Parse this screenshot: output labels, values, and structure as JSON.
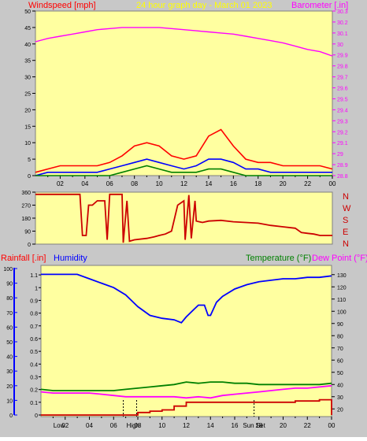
{
  "header": {
    "left_label": "Windspeed [mph]",
    "center_label": "24 hour graph day - March 01 2023",
    "right_label": "Barometer [.in]"
  },
  "colors": {
    "plot_bg": "#ffffa0",
    "frame_bg": "#c8c8c8",
    "red": "#ff0000",
    "magenta": "#ff00ff",
    "blue": "#0000ff",
    "green": "#008000",
    "dark_red": "#cc0000",
    "title_yellow": "#ffff00",
    "axis": "#000000"
  },
  "chart_data": [
    {
      "type": "line",
      "name": "wind-barometer",
      "left_axis": {
        "label": "Windspeed [mph]",
        "ylim": [
          0,
          50
        ],
        "ticks": [
          "0",
          "5",
          "10",
          "15",
          "20",
          "25",
          "30",
          "35",
          "40",
          "45",
          "50"
        ]
      },
      "right_axis": {
        "label": "Barometer [.in]",
        "ylim": [
          28.8,
          30.3
        ],
        "ticks": [
          "28.8",
          "28.9",
          "29",
          "29.1",
          "29.2",
          "29.3",
          "29.4",
          "29.5",
          "29.6",
          "29.7",
          "29.8",
          "29.9",
          "30",
          "30.1",
          "30.2",
          "30.3"
        ]
      },
      "x_ticks": [
        "02",
        "04",
        "06",
        "08",
        "10",
        "12",
        "14",
        "16",
        "18",
        "20",
        "22",
        "00"
      ],
      "xlim": [
        0,
        24
      ],
      "series": [
        {
          "name": "Barometer",
          "color": "#ff00ff",
          "axis": "right",
          "x": [
            0,
            1,
            2,
            3,
            4,
            5,
            6,
            7,
            8,
            9,
            10,
            11,
            12,
            13,
            14,
            15,
            16,
            17,
            18,
            19,
            20,
            21,
            22,
            23,
            23.5,
            24
          ],
          "y": [
            30.02,
            30.05,
            30.07,
            30.09,
            30.11,
            30.13,
            30.14,
            30.15,
            30.15,
            30.15,
            30.15,
            30.14,
            30.13,
            30.12,
            30.11,
            30.1,
            30.09,
            30.07,
            30.05,
            30.03,
            30.01,
            29.98,
            29.95,
            29.93,
            29.91,
            29.89
          ]
        },
        {
          "name": "Wind gust",
          "color": "#ff0000",
          "axis": "left",
          "x": [
            0,
            1,
            2,
            3,
            4,
            5,
            6,
            7,
            8,
            9,
            10,
            11,
            12,
            13,
            14,
            15,
            16,
            17,
            18,
            19,
            20,
            21,
            22,
            23,
            24
          ],
          "y": [
            1,
            2,
            3,
            3,
            3,
            3,
            4,
            6,
            9,
            10,
            9,
            6,
            5,
            6,
            12,
            14,
            9,
            5,
            4,
            4,
            3,
            3,
            3,
            3,
            2
          ]
        },
        {
          "name": "Wind average",
          "color": "#0000ff",
          "axis": "left",
          "x": [
            0,
            1,
            2,
            3,
            4,
            5,
            6,
            7,
            8,
            9,
            10,
            11,
            12,
            13,
            14,
            15,
            16,
            17,
            18,
            19,
            20,
            21,
            22,
            23,
            24
          ],
          "y": [
            0,
            1,
            1,
            1,
            1,
            1,
            2,
            3,
            4,
            5,
            4,
            3,
            2,
            3,
            5,
            5,
            4,
            2,
            2,
            1,
            1,
            1,
            1,
            1,
            1
          ]
        },
        {
          "name": "Wind low",
          "color": "#008000",
          "axis": "left",
          "x": [
            0,
            1,
            2,
            3,
            4,
            5,
            6,
            7,
            8,
            9,
            10,
            11,
            12,
            13,
            14,
            15,
            16,
            17,
            18,
            19,
            20,
            21,
            22,
            23,
            24
          ],
          "y": [
            0,
            0,
            0,
            0,
            0,
            0,
            0,
            1,
            2,
            3,
            2,
            1,
            1,
            1,
            2,
            2,
            1,
            0,
            0,
            0,
            0,
            0,
            0,
            0,
            0
          ]
        }
      ]
    },
    {
      "type": "line",
      "name": "wind-direction",
      "left_axis": {
        "ylim": [
          0,
          360
        ],
        "ticks": [
          "0",
          "90",
          "180",
          "270",
          "360"
        ]
      },
      "right_labels": [
        "N",
        "W",
        "S",
        "E",
        "N"
      ],
      "xlim": [
        0,
        24
      ],
      "series": [
        {
          "name": "Direction",
          "color": "#cc0000",
          "x": [
            0,
            3,
            3.6,
            3.8,
            4.1,
            4.3,
            4.6,
            5,
            5.6,
            5.8,
            6,
            6.5,
            7,
            7.1,
            7.4,
            7.6,
            8,
            9,
            9.6,
            10,
            10.5,
            11,
            11.5,
            12,
            12.1,
            12.4,
            12.6,
            12.9,
            13,
            13.5,
            14,
            15,
            16,
            17,
            18,
            19,
            20,
            21,
            21.5,
            22,
            22.5,
            23,
            24
          ],
          "y": [
            345,
            345,
            345,
            60,
            60,
            270,
            270,
            300,
            300,
            30,
            345,
            345,
            345,
            10,
            300,
            20,
            30,
            40,
            50,
            60,
            70,
            90,
            270,
            300,
            30,
            340,
            40,
            300,
            160,
            150,
            160,
            165,
            155,
            150,
            145,
            130,
            120,
            110,
            80,
            75,
            70,
            60,
            60
          ]
        }
      ]
    },
    {
      "type": "line",
      "name": "rain-humidity-temperature",
      "header": {
        "left_label": "Rainfall [.in]",
        "humidity_label": "Humidity",
        "temp_label": "Temperature (°F)",
        "dew_label": "Dew Point (°F)"
      },
      "humidity_axis": {
        "ylim": [
          0,
          100
        ],
        "ticks": [
          "0",
          "10",
          "20",
          "30",
          "40",
          "50",
          "60",
          "70",
          "80",
          "90",
          "100"
        ]
      },
      "rain_axis": {
        "ylim": [
          0,
          1.15
        ],
        "ticks": [
          "0",
          "0.1",
          "0.2",
          "0.3",
          "0.4",
          "0.5",
          "0.6",
          "0.7",
          "0.8",
          "0.9",
          "1",
          "1.1"
        ]
      },
      "temp_axis": {
        "ylim": [
          15,
          135
        ],
        "ticks": [
          "20",
          "30",
          "40",
          "50",
          "60",
          "70",
          "80",
          "90",
          "100",
          "110",
          "120",
          "130"
        ]
      },
      "x_ticks": [
        "02",
        "04",
        "06",
        "08",
        "10",
        "12",
        "14",
        "16",
        "18",
        "20",
        "22",
        "00"
      ],
      "markers": [
        "Low",
        "High",
        "Sun Set"
      ],
      "xlim": [
        0,
        24
      ],
      "series": [
        {
          "name": "Humidity",
          "color": "#0000ff",
          "axis": "humidity",
          "x": [
            0,
            2,
            3,
            4,
            5,
            6,
            7,
            8,
            9,
            10,
            11,
            11.6,
            12,
            12.5,
            13,
            13.5,
            13.8,
            14,
            14.5,
            15,
            16,
            17,
            18,
            19,
            20,
            21,
            22,
            23,
            24
          ],
          "y": [
            96,
            96,
            96,
            93,
            90,
            87,
            82,
            74,
            68,
            66,
            65,
            63,
            67,
            71,
            75,
            75,
            68,
            68,
            77,
            81,
            86,
            89,
            91,
            92,
            93,
            93,
            94,
            94,
            95
          ]
        },
        {
          "name": "Temperature",
          "color": "#008000",
          "axis": "temp",
          "x": [
            0,
            1,
            2,
            3,
            4,
            5,
            6,
            7,
            8,
            9,
            10,
            11,
            12,
            13,
            14,
            15,
            16,
            17,
            18,
            19,
            20,
            21,
            22,
            23,
            24
          ],
          "y": [
            36,
            35,
            35,
            35,
            35,
            35,
            35,
            36,
            37,
            38,
            39,
            40,
            42,
            41,
            42,
            42,
            41,
            41,
            40,
            40,
            40,
            40,
            40,
            40,
            41
          ]
        },
        {
          "name": "Dew Point",
          "color": "#ff00ff",
          "axis": "temp",
          "x": [
            0,
            1,
            2,
            3,
            4,
            5,
            6,
            7,
            8,
            9,
            10,
            11,
            12,
            13,
            14,
            15,
            16,
            17,
            18,
            19,
            20,
            21,
            22,
            23,
            24
          ],
          "y": [
            34,
            33,
            33,
            33,
            33,
            32,
            31,
            30,
            30,
            30,
            30,
            30,
            29,
            30,
            29,
            31,
            32,
            33,
            34,
            35,
            36,
            37,
            37,
            38,
            39
          ]
        },
        {
          "name": "Rainfall",
          "color": "#cc0000",
          "axis": "rain",
          "x": [
            0,
            7.7,
            8,
            9,
            10,
            11,
            12,
            13,
            14,
            15,
            16,
            17,
            18,
            19,
            20,
            21,
            22,
            23,
            23.9,
            24
          ],
          "y": [
            0,
            0,
            0.02,
            0.03,
            0.04,
            0.07,
            0.1,
            0.1,
            0.1,
            0.1,
            0.1,
            0.1,
            0.1,
            0.1,
            0.1,
            0.11,
            0.11,
            0.12,
            0.12,
            0
          ]
        }
      ]
    }
  ]
}
